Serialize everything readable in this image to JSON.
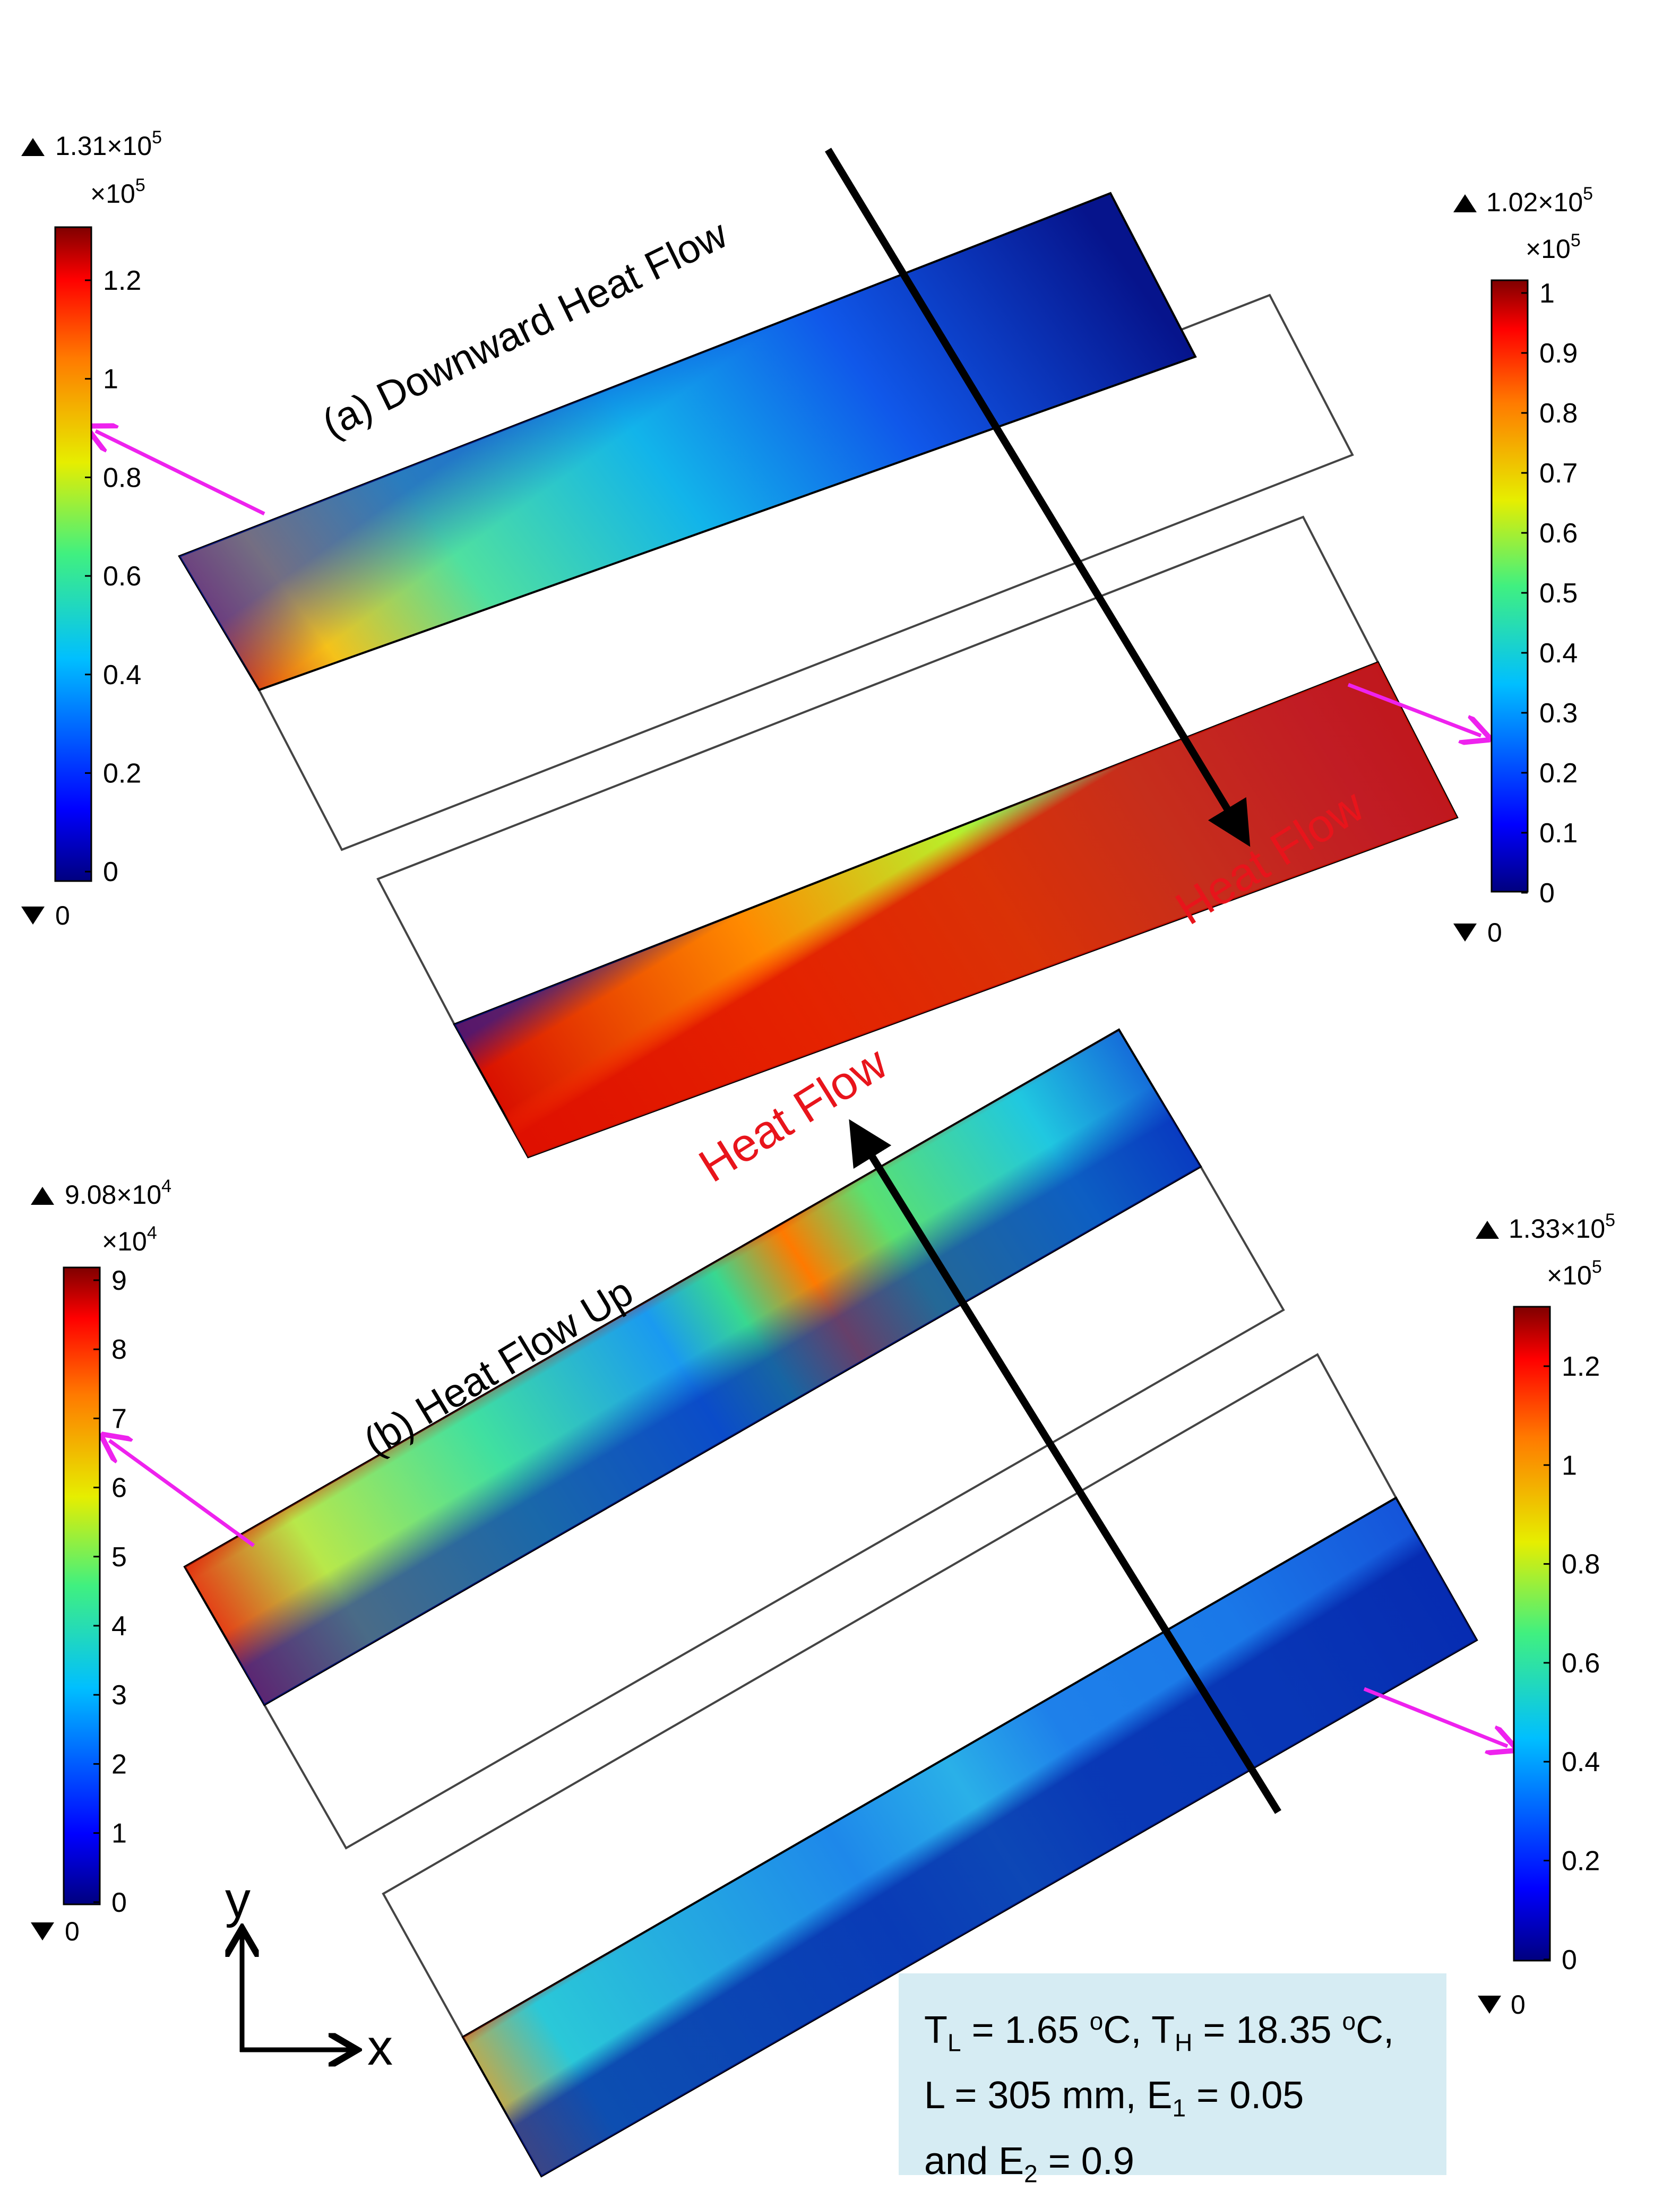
{
  "panel_a": {
    "label": "(a) Downward Heat Flow",
    "heat_flow_label": "Heat Flow",
    "colorbar_left": {
      "max_text": "1.31×10",
      "max_exp": "5",
      "scale_text": "×10",
      "scale_exp": "5",
      "min_text": "0",
      "ticks": [
        "1.2",
        "1",
        "0.8",
        "0.6",
        "0.4",
        "0.2",
        "0"
      ]
    },
    "colorbar_right": {
      "max_text": "1.02×10",
      "max_exp": "5",
      "scale_text": "×10",
      "scale_exp": "5",
      "min_text": "0",
      "ticks": [
        "1",
        "0.9",
        "0.8",
        "0.7",
        "0.6",
        "0.5",
        "0.4",
        "0.3",
        "0.2",
        "0.1",
        "0"
      ]
    }
  },
  "panel_b": {
    "label": "(b) Heat Flow Up",
    "heat_flow_label": "Heat Flow",
    "colorbar_left": {
      "max_text": "9.08×10",
      "max_exp": "4",
      "scale_text": "×10",
      "scale_exp": "4",
      "min_text": "0",
      "ticks": [
        "9",
        "8",
        "7",
        "6",
        "5",
        "4",
        "3",
        "2",
        "1",
        "0"
      ]
    },
    "colorbar_right": {
      "max_text": "1.33×10",
      "max_exp": "5",
      "scale_text": "×10",
      "scale_exp": "5",
      "min_text": "0",
      "ticks": [
        "1.2",
        "1",
        "0.8",
        "0.6",
        "0.4",
        "0.2",
        "0"
      ]
    }
  },
  "axes": {
    "x": "x",
    "y": "y"
  },
  "params": {
    "tl_sym": "T",
    "tl_sub": "L",
    "tl_val": " = 1.65 ",
    "th_sym": "T",
    "th_sub": "H",
    "th_val": " = 18.35 ",
    "deg": "o",
    "unit": "C",
    "l_text": "L = 305 mm, E",
    "e1_sub": "1",
    "e1_val": " = 0.05",
    "and_text": "and E",
    "e2_sub": "2",
    "e2_val": " = 0.9"
  },
  "colors": {
    "arrow_black": "#000000",
    "arrow_magenta": "#ee22ee",
    "heat_flow_text": "#e8141b",
    "param_box_bg": "#d6ecf3"
  }
}
